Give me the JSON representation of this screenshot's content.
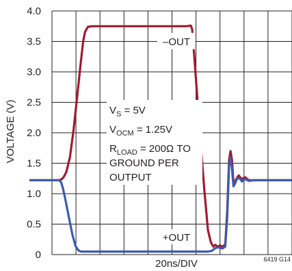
{
  "chart_data": {
    "type": "line",
    "ylabel": "VOLTAGE (V)",
    "xlabel": "20ns/DIV",
    "ylim": [
      0,
      4.0
    ],
    "xlim": [
      0,
      10
    ],
    "y_ticks": [
      "0",
      "0.5",
      "1.0",
      "1.5",
      "2.0",
      "2.5",
      "3.0",
      "3.5",
      "4.0"
    ],
    "x_divisions": 10,
    "grid": true,
    "series": [
      {
        "name": "–OUT",
        "color": "#9e1b32",
        "points": [
          [
            -0.9,
            1.22
          ],
          [
            0.3,
            1.22
          ],
          [
            0.42,
            1.24
          ],
          [
            0.5,
            1.28
          ],
          [
            0.6,
            1.36
          ],
          [
            0.75,
            1.6
          ],
          [
            0.9,
            2.05
          ],
          [
            1.05,
            2.6
          ],
          [
            1.2,
            3.15
          ],
          [
            1.3,
            3.5
          ],
          [
            1.38,
            3.66
          ],
          [
            1.5,
            3.74
          ],
          [
            1.7,
            3.75
          ],
          [
            3.0,
            3.75
          ],
          [
            4.5,
            3.75
          ],
          [
            5.6,
            3.75
          ],
          [
            5.78,
            3.76
          ],
          [
            5.84,
            3.7
          ],
          [
            5.92,
            3.3
          ],
          [
            6.05,
            2.6
          ],
          [
            6.2,
            1.8
          ],
          [
            6.35,
            1.05
          ],
          [
            6.5,
            0.4
          ],
          [
            6.62,
            0.2
          ],
          [
            6.72,
            0.13
          ],
          [
            6.8,
            0.16
          ],
          [
            6.9,
            0.13
          ],
          [
            7.0,
            0.15
          ],
          [
            7.12,
            0.13
          ],
          [
            7.22,
            0.17
          ],
          [
            7.3,
            0.7
          ],
          [
            7.38,
            1.55
          ],
          [
            7.44,
            1.7
          ],
          [
            7.5,
            1.55
          ],
          [
            7.55,
            1.25
          ],
          [
            7.6,
            1.16
          ],
          [
            7.68,
            1.24
          ],
          [
            7.78,
            1.3
          ],
          [
            7.9,
            1.24
          ],
          [
            8.05,
            1.27
          ],
          [
            8.2,
            1.22
          ],
          [
            8.4,
            1.22
          ],
          [
            9.5,
            1.22
          ],
          [
            10.1,
            1.22
          ]
        ]
      },
      {
        "name": "+OUT",
        "color": "#3c5cab",
        "points": [
          [
            -0.9,
            1.22
          ],
          [
            0.3,
            1.22
          ],
          [
            0.38,
            1.19
          ],
          [
            0.45,
            1.1
          ],
          [
            0.55,
            0.92
          ],
          [
            0.7,
            0.62
          ],
          [
            0.85,
            0.33
          ],
          [
            0.98,
            0.14
          ],
          [
            1.1,
            0.07
          ],
          [
            1.2,
            0.05
          ],
          [
            1.5,
            0.05
          ],
          [
            3.0,
            0.05
          ],
          [
            5.0,
            0.05
          ],
          [
            6.5,
            0.05
          ],
          [
            6.65,
            0.06
          ],
          [
            6.78,
            0.1
          ],
          [
            6.9,
            0.12
          ],
          [
            7.1,
            0.1
          ],
          [
            7.22,
            0.13
          ],
          [
            7.3,
            0.6
          ],
          [
            7.38,
            1.45
          ],
          [
            7.44,
            1.6
          ],
          [
            7.5,
            1.4
          ],
          [
            7.56,
            1.12
          ],
          [
            7.62,
            1.16
          ],
          [
            7.7,
            1.24
          ],
          [
            7.8,
            1.26
          ],
          [
            7.92,
            1.2
          ],
          [
            8.05,
            1.24
          ],
          [
            8.2,
            1.21
          ],
          [
            8.4,
            1.22
          ],
          [
            9.5,
            1.22
          ],
          [
            10.1,
            1.22
          ]
        ]
      }
    ],
    "annotations": {
      "minus_out_label": "–OUT",
      "plus_out_label": "+OUT",
      "cond_line1_base": "V",
      "cond_line1_sub": "S",
      "cond_line1_rest": " = 5V",
      "cond_line2_base": "V",
      "cond_line2_sub": "OCM",
      "cond_line2_rest": " = 1.25V",
      "cond_line3_base": "R",
      "cond_line3_sub": "LOAD",
      "cond_line3_rest": " = 200Ω TO",
      "cond_line4": "GROUND PER",
      "cond_line5": "OUTPUT",
      "figure_id": "6419 G14"
    }
  }
}
